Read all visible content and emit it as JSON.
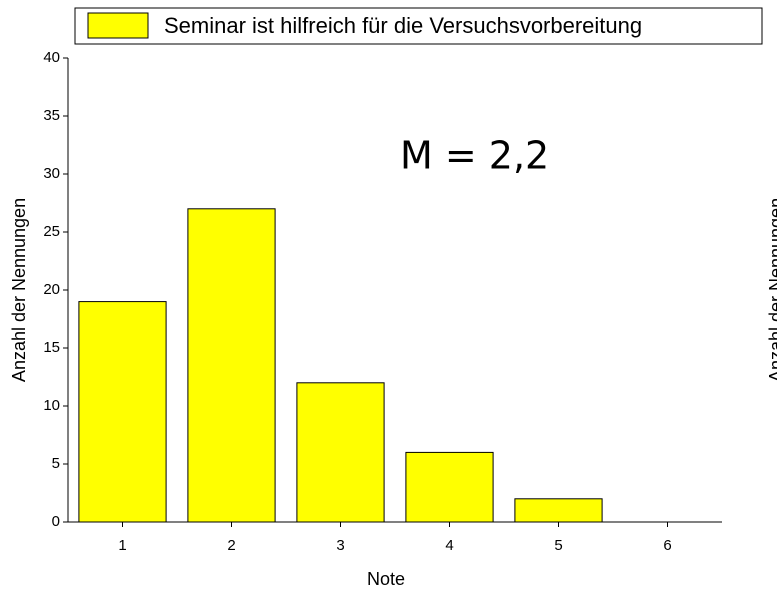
{
  "chart_data": {
    "type": "bar",
    "legend": "Seminar ist hilfreich für die Versuchsvorbereitung",
    "annotation": "M = 2,2",
    "x_label": "Note",
    "y_label": "Anzahl der Nennungen",
    "right_label": "Anzahl der Nennungen",
    "categories": [
      "1",
      "2",
      "3",
      "4",
      "5",
      "6"
    ],
    "values": [
      19,
      27,
      12,
      6,
      2,
      0
    ],
    "color": "#ffff00",
    "ylim": [
      0,
      40
    ],
    "yticks": [
      0,
      5,
      10,
      15,
      20,
      25,
      30,
      35,
      40
    ],
    "grid": false
  }
}
